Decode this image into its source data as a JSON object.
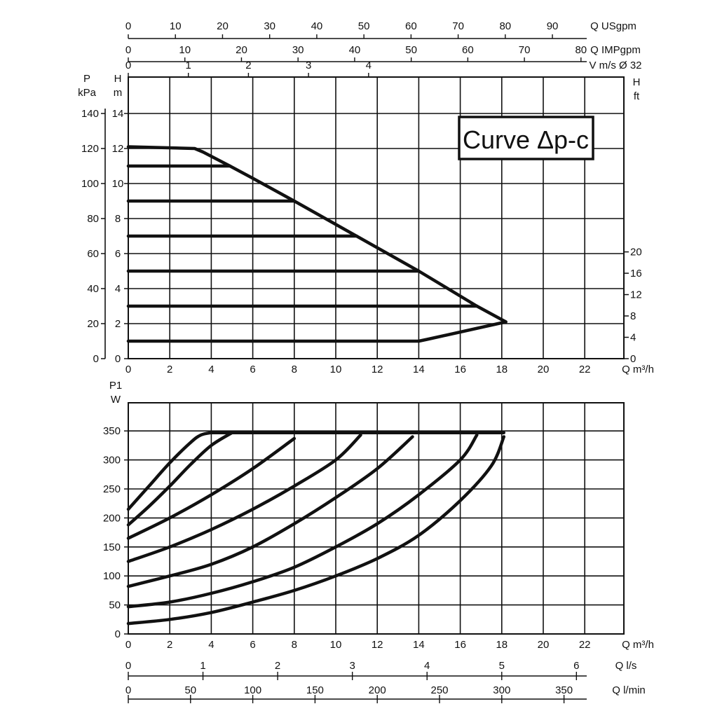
{
  "chart_data": [
    {
      "type": "line",
      "title": "Curve Δp-c",
      "x": {
        "label": "Q m³/h",
        "range": [
          0,
          24
        ],
        "ticks": [
          0,
          2,
          4,
          6,
          8,
          10,
          12,
          14,
          16,
          18,
          20,
          22
        ]
      },
      "top_axes": [
        {
          "label": "Q USgpm",
          "range": [
            0,
            105.67
          ],
          "ticks": [
            0,
            10,
            20,
            30,
            40,
            50,
            60,
            70,
            80,
            90
          ]
        },
        {
          "label": "Q IMPgpm",
          "range": [
            0,
            88.0
          ],
          "ticks": [
            0,
            10,
            20,
            30,
            40,
            50,
            60,
            70,
            80
          ]
        },
        {
          "label": "V m/s Ø 32",
          "range": [
            0,
            8.289
          ],
          "ticks": [
            0,
            1,
            2,
            3,
            4
          ]
        }
      ],
      "y_left_h": {
        "label_top": "H",
        "label_unit": "m",
        "range": [
          0,
          14
        ],
        "ticks": [
          0,
          2,
          4,
          6,
          8,
          10,
          12,
          14
        ]
      },
      "y_left_p": {
        "label_top": "P",
        "label_unit": "kPa",
        "range": [
          0,
          140
        ],
        "ticks": [
          0,
          20,
          40,
          60,
          80,
          100,
          120,
          140
        ]
      },
      "y_right_ft": {
        "label_top": "H",
        "label_unit": "ft",
        "range": [
          0,
          45.93
        ],
        "ticks": [
          0,
          4,
          8,
          12,
          16,
          20
        ]
      },
      "grid": true,
      "series": [
        {
          "points": [
            [
              0,
              12.1
            ],
            [
              3.2,
              12.0
            ],
            [
              3.6,
              11.8
            ],
            [
              4.9,
              11.0
            ],
            [
              6.0,
              10.3
            ],
            [
              8.0,
              9.0
            ],
            [
              11.0,
              7.0
            ],
            [
              14.0,
              5.0
            ],
            [
              16.8,
              3.0
            ],
            [
              18.2,
              2.1
            ],
            [
              14.4,
              1.1
            ],
            [
              14.0,
              1.0
            ],
            [
              0,
              1.0
            ]
          ]
        },
        {
          "points": [
            [
              0,
              11.0
            ],
            [
              4.9,
              11.0
            ]
          ]
        },
        {
          "points": [
            [
              0,
              9.0
            ],
            [
              8.0,
              9.0
            ]
          ]
        },
        {
          "points": [
            [
              0,
              7.0
            ],
            [
              11.0,
              7.0
            ]
          ]
        },
        {
          "points": [
            [
              0,
              5.0
            ],
            [
              14.0,
              5.0
            ]
          ]
        },
        {
          "points": [
            [
              0,
              3.0
            ],
            [
              16.8,
              3.0
            ]
          ]
        }
      ]
    },
    {
      "type": "line",
      "x": {
        "label": "Q m³/h",
        "range": [
          0,
          24
        ],
        "ticks": [
          0,
          2,
          4,
          6,
          8,
          10,
          12,
          14,
          16,
          18,
          20,
          22
        ]
      },
      "bottom_axes": [
        {
          "label": "Q l/s",
          "range": [
            0,
            6.667
          ],
          "ticks": [
            0,
            1,
            2,
            3,
            4,
            5,
            6
          ]
        },
        {
          "label": "Q l/min",
          "range": [
            0,
            400
          ],
          "ticks": [
            0,
            50,
            100,
            150,
            200,
            250,
            300,
            350
          ]
        }
      ],
      "y": {
        "label_top": "P1",
        "label_unit": "W",
        "range": [
          0,
          400
        ],
        "ticks": [
          0,
          50,
          100,
          150,
          200,
          250,
          300,
          350
        ]
      },
      "grid": true,
      "series": [
        {
          "points": [
            [
              0,
              215
            ],
            [
              1,
              255
            ],
            [
              2,
              295
            ],
            [
              3,
              330
            ],
            [
              3.5,
              343
            ],
            [
              4,
              347
            ],
            [
              18.1,
              347
            ]
          ]
        },
        {
          "points": [
            [
              0,
              188
            ],
            [
              1,
              220
            ],
            [
              2,
              255
            ],
            [
              3,
              292
            ],
            [
              4,
              325
            ],
            [
              5.0,
              347
            ]
          ]
        },
        {
          "points": [
            [
              0,
              165
            ],
            [
              2,
              200
            ],
            [
              4,
              240
            ],
            [
              6,
              285
            ],
            [
              8,
              337
            ]
          ]
        },
        {
          "points": [
            [
              0,
              125
            ],
            [
              2,
              150
            ],
            [
              4,
              180
            ],
            [
              6,
              215
            ],
            [
              8,
              255
            ],
            [
              10,
              300
            ],
            [
              11.2,
              343
            ]
          ]
        },
        {
          "points": [
            [
              0,
              82
            ],
            [
              2,
              100
            ],
            [
              4,
              120
            ],
            [
              6,
              150
            ],
            [
              8,
              190
            ],
            [
              10,
              235
            ],
            [
              12,
              285
            ],
            [
              13.7,
              340
            ]
          ]
        },
        {
          "points": [
            [
              0,
              47
            ],
            [
              2,
              55
            ],
            [
              4,
              70
            ],
            [
              6,
              90
            ],
            [
              8,
              115
            ],
            [
              10,
              150
            ],
            [
              12,
              190
            ],
            [
              14,
              240
            ],
            [
              16,
              300
            ],
            [
              16.8,
              343
            ]
          ]
        },
        {
          "points": [
            [
              0,
              18
            ],
            [
              2,
              25
            ],
            [
              4,
              37
            ],
            [
              6,
              55
            ],
            [
              8,
              75
            ],
            [
              10,
              100
            ],
            [
              12,
              130
            ],
            [
              14,
              170
            ],
            [
              16,
              230
            ],
            [
              17.5,
              290
            ],
            [
              18.1,
              340
            ]
          ]
        }
      ]
    }
  ]
}
